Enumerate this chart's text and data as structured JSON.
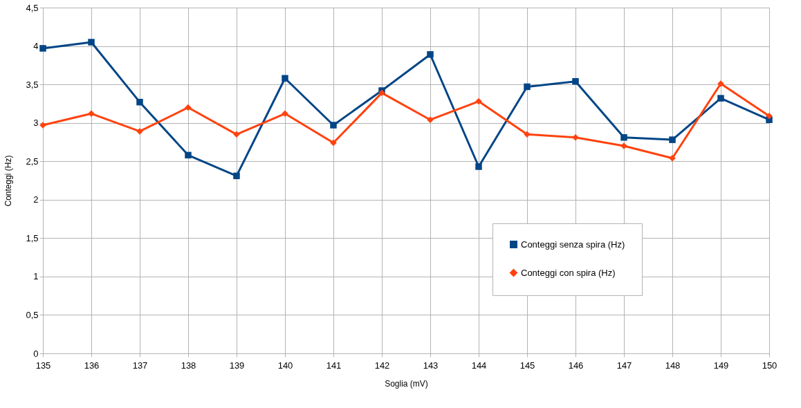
{
  "chart_data": {
    "type": "line",
    "xlabel": "Soglia (mV)",
    "ylabel": "Conteggi (Hz)",
    "x": [
      135,
      136,
      137,
      138,
      139,
      140,
      141,
      142,
      143,
      144,
      145,
      146,
      147,
      148,
      149,
      150
    ],
    "series": [
      {
        "name": "Conteggi senza spira (Hz)",
        "color": "#004586",
        "marker": "square",
        "values": [
          3.97,
          4.05,
          3.27,
          2.58,
          2.31,
          3.58,
          2.97,
          3.42,
          3.89,
          2.43,
          3.47,
          3.54,
          2.81,
          2.78,
          3.32,
          3.04
        ]
      },
      {
        "name": "Conteggi con spira (Hz)",
        "color": "#ff420e",
        "marker": "diamond",
        "values": [
          2.97,
          3.12,
          2.89,
          3.2,
          2.85,
          3.12,
          2.74,
          3.39,
          3.04,
          3.28,
          2.85,
          2.81,
          2.7,
          2.54,
          3.51,
          3.09
        ]
      }
    ],
    "xlim": [
      135,
      150
    ],
    "xticks": [
      135,
      136,
      137,
      138,
      139,
      140,
      141,
      142,
      143,
      144,
      145,
      146,
      147,
      148,
      149,
      150
    ],
    "ylim": [
      0,
      4.5
    ],
    "yticks": [
      0,
      {
        "value": 0.5,
        "label": "0,5"
      },
      1,
      {
        "value": 1.5,
        "label": "1,5"
      },
      2,
      {
        "value": 2.5,
        "label": "2,5"
      },
      3,
      {
        "value": 3.5,
        "label": "3,5"
      },
      4,
      {
        "value": 4.5,
        "label": "4,5"
      }
    ],
    "grid": true,
    "legend": "right",
    "line_style": "solid"
  }
}
